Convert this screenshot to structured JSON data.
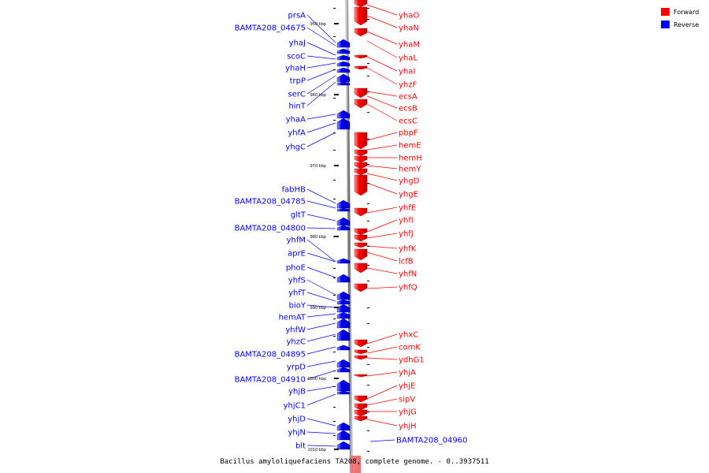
{
  "caption": "Bacillus amyloliquefaciens TA208, complete genome. - 0..3937511",
  "legend": [
    {
      "label": "Forward",
      "color": "#ff0000"
    },
    {
      "label": "Reverse",
      "color": "#0000ff"
    }
  ],
  "colors": {
    "forward": "#ff0000",
    "reverse": "#0000ff",
    "backbone": "#888888"
  },
  "ticks": [
    "950 kbp",
    "960 kbp",
    "970 kbp",
    "980 kbp",
    "990 kbp",
    "1000 kbp",
    "1010 kbp"
  ],
  "forward_genes": [
    "yhaO",
    "yhaN",
    "yhaM",
    "yhaL",
    "yhaI",
    "yhzF",
    "ecsA",
    "ecsB",
    "ecsC",
    "pbpF",
    "hemE",
    "hemH",
    "hemY",
    "yhgD",
    "yhgE",
    "yhfE",
    "yhfI",
    "yhfJ",
    "yhfK",
    "lcfB",
    "yhfN",
    "yhfQ",
    "yhxC",
    "comK",
    "ydhG1",
    "yhjA",
    "yhjE",
    "sipV",
    "yhjG",
    "yhjH"
  ],
  "reverse_genes": [
    "prsA",
    "BAMTA208_04675",
    "yhaJ",
    "scoC",
    "yhaH",
    "trpP",
    "serC",
    "hinT",
    "yhaA",
    "yhfA",
    "yhgC",
    "fabHB",
    "BAMTA208_04785",
    "gltT",
    "BAMTA208_04800",
    "yhfM",
    "aprE",
    "phoE",
    "yhfS",
    "yhfT",
    "bioY",
    "hemAT",
    "yhfW",
    "yhzC",
    "BAMTA208_04895",
    "yrpD",
    "BAMTA208_04910",
    "yhjB",
    "yhjC1",
    "yhjD",
    "yhjN",
    "blt"
  ],
  "other_genes": [
    "BAMTA208_04960"
  ]
}
